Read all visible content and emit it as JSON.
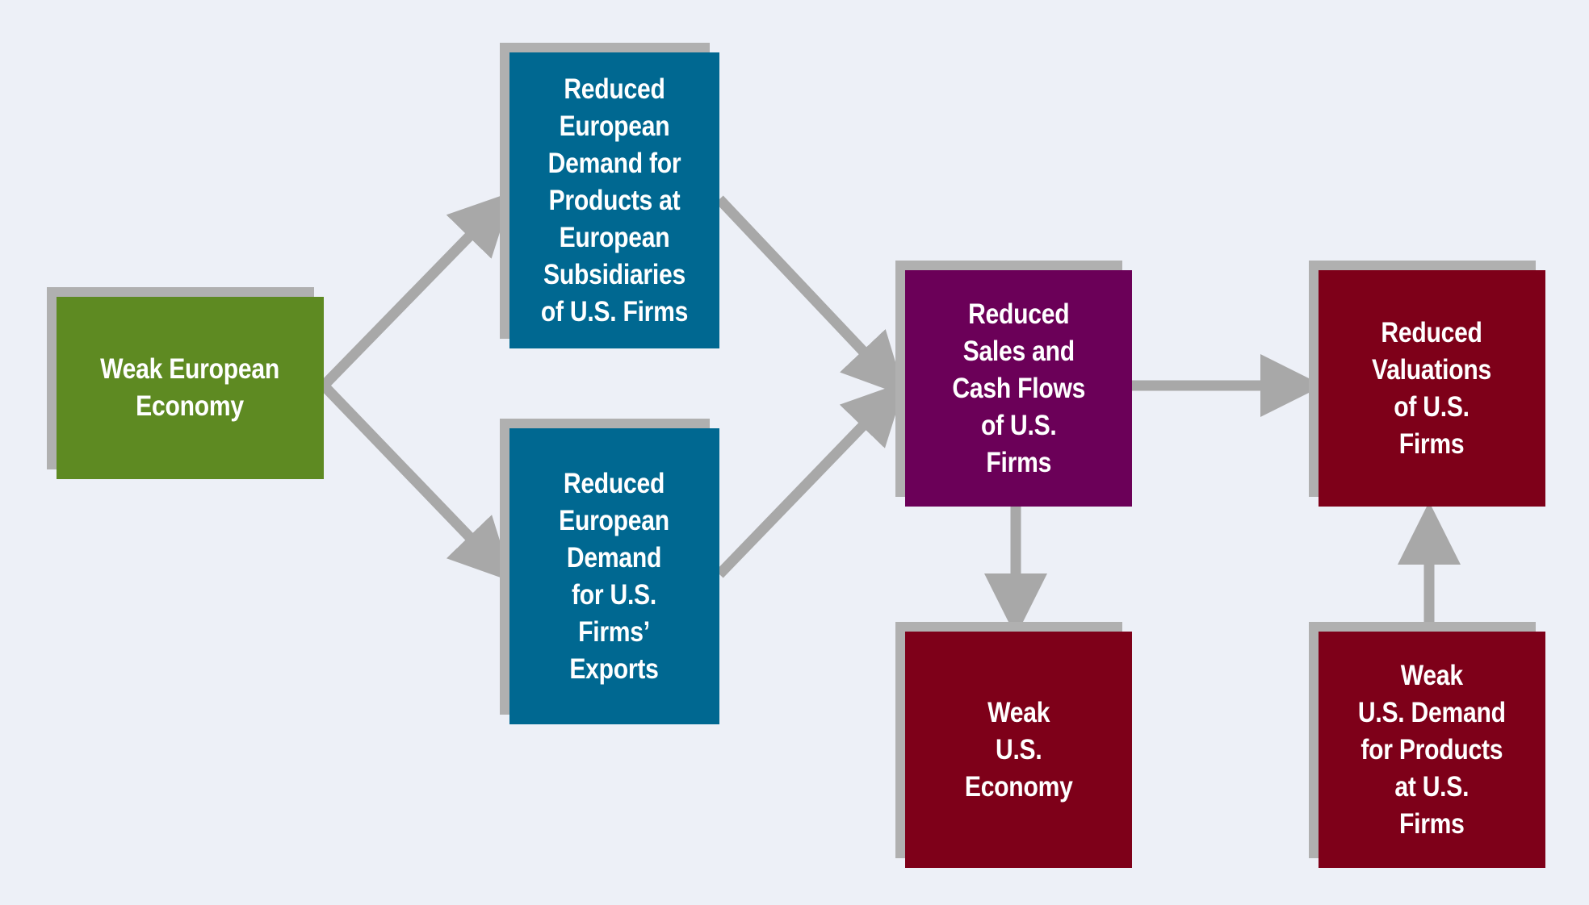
{
  "colors": {
    "background": "#EDF0F7",
    "shadow": "#B0B0B0",
    "arrow": "#A8A8A8",
    "green": "#5E8A22",
    "blue": "#006891",
    "purple": "#6B0058",
    "crimson": "#7E0019"
  },
  "nodes": {
    "weak_european_economy": {
      "label": "Weak European\nEconomy",
      "color": "green"
    },
    "reduced_demand_subsidiaries": {
      "label": "Reduced\nEuropean\nDemand for\nProducts at\nEuropean\nSubsidiaries\nof U.S. Firms",
      "color": "blue"
    },
    "reduced_demand_exports": {
      "label": "Reduced\nEuropean\nDemand\nfor U.S.\nFirms’\nExports",
      "color": "blue"
    },
    "reduced_sales": {
      "label": "Reduced\nSales and\nCash Flows\nof U.S.\nFirms",
      "color": "purple"
    },
    "reduced_valuations": {
      "label": "Reduced\nValuations\nof U.S.\nFirms",
      "color": "crimson"
    },
    "weak_us_economy": {
      "label": "Weak\nU.S.\nEconomy",
      "color": "crimson"
    },
    "weak_us_demand": {
      "label": "Weak\nU.S. Demand\nfor Products\nat U.S.\nFirms",
      "color": "crimson"
    }
  },
  "edges": [
    {
      "from": "weak_european_economy",
      "to": "reduced_demand_subsidiaries"
    },
    {
      "from": "weak_european_economy",
      "to": "reduced_demand_exports"
    },
    {
      "from": "reduced_demand_subsidiaries",
      "to": "reduced_sales"
    },
    {
      "from": "reduced_demand_exports",
      "to": "reduced_sales"
    },
    {
      "from": "reduced_sales",
      "to": "reduced_valuations"
    },
    {
      "from": "reduced_sales",
      "to": "weak_us_economy"
    },
    {
      "from": "weak_us_demand",
      "to": "reduced_valuations"
    }
  ]
}
